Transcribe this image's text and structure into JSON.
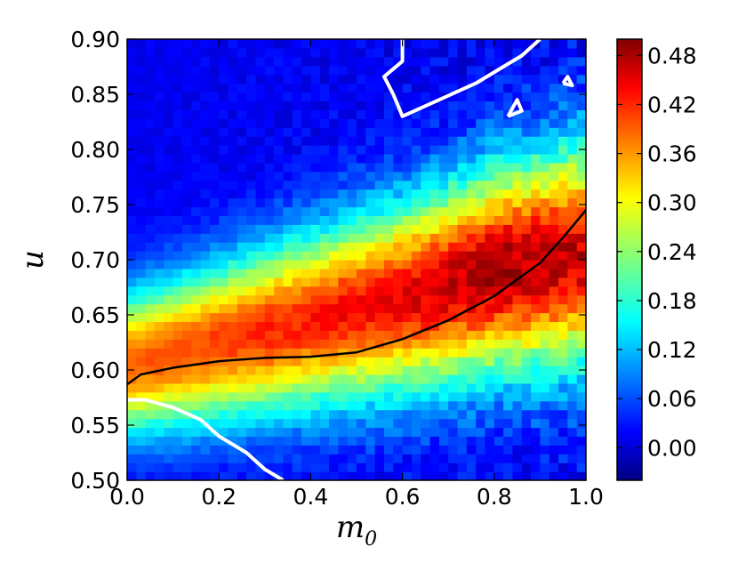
{
  "chart_data": {
    "type": "heatmap",
    "title": "",
    "xlabel": "m",
    "xlabel_subscript": "0",
    "ylabel": "u",
    "xlim": [
      0.0,
      1.0
    ],
    "ylim": [
      0.5,
      0.9
    ],
    "x_ticks": [
      "0.0",
      "0.2",
      "0.4",
      "0.6",
      "0.8",
      "1.0"
    ],
    "y_ticks": [
      "0.50",
      "0.55",
      "0.60",
      "0.65",
      "0.70",
      "0.75",
      "0.80",
      "0.85",
      "0.90"
    ],
    "colorbar": {
      "colormap": "jet",
      "range": [
        -0.04,
        0.5
      ],
      "ticks": [
        "0.00",
        "0.06",
        "0.12",
        "0.18",
        "0.24",
        "0.30",
        "0.36",
        "0.42",
        "0.48"
      ]
    },
    "ridge": {
      "description_free": true,
      "center_x": [
        0.0,
        0.2,
        0.4,
        0.6,
        0.8,
        1.0
      ],
      "center_y": [
        0.605,
        0.625,
        0.645,
        0.665,
        0.69,
        0.705
      ],
      "peak_value": [
        0.36,
        0.38,
        0.4,
        0.42,
        0.46,
        0.44
      ]
    },
    "black_curve": {
      "x": [
        0.0,
        0.03,
        0.1,
        0.2,
        0.3,
        0.4,
        0.5,
        0.6,
        0.7,
        0.8,
        0.9,
        0.95,
        1.0
      ],
      "y": [
        0.587,
        0.596,
        0.602,
        0.608,
        0.611,
        0.612,
        0.616,
        0.628,
        0.645,
        0.667,
        0.697,
        0.72,
        0.745
      ]
    },
    "white_contours": [
      {
        "x": [
          0.0,
          0.04,
          0.1,
          0.16,
          0.2,
          0.26,
          0.3,
          0.34
        ],
        "y": [
          0.573,
          0.573,
          0.566,
          0.555,
          0.54,
          0.525,
          0.51,
          0.5
        ]
      },
      {
        "x": [
          0.6,
          0.6,
          0.56,
          0.58,
          0.6,
          0.68,
          0.76,
          0.82,
          0.86,
          0.9
        ],
        "y": [
          0.9,
          0.88,
          0.866,
          0.85,
          0.83,
          0.845,
          0.86,
          0.875,
          0.885,
          0.9
        ]
      },
      {
        "x": [
          0.83,
          0.86,
          0.85,
          0.83
        ],
        "y": [
          0.83,
          0.835,
          0.845,
          0.83
        ]
      },
      {
        "x": [
          0.95,
          0.96,
          0.97,
          0.95
        ],
        "y": [
          0.86,
          0.866,
          0.858,
          0.86
        ]
      }
    ],
    "colors": {
      "contour": "#ffffff",
      "curve": "#000000",
      "frame": "#000000"
    }
  }
}
